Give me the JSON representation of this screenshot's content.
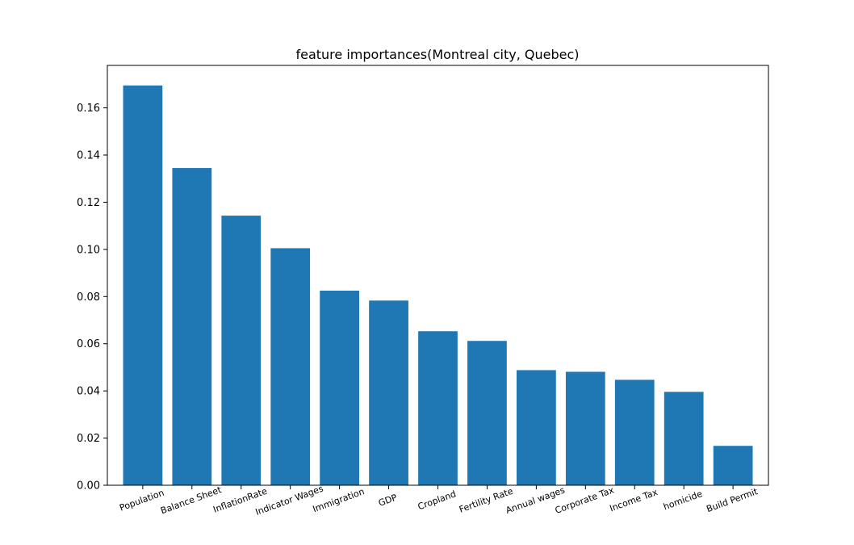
{
  "chart_data": {
    "type": "bar",
    "title": "feature importances(Montreal city, Quebec)",
    "xlabel": "",
    "ylabel": "",
    "categories": [
      "Population",
      "Balance Sheet",
      "InflationRate",
      "Indicator Wages",
      "Immigration",
      "GDP",
      "Cropland",
      "Fertility Rate",
      "Annual wages",
      "Corporate Tax",
      "Income Tax",
      "homicide",
      "Build Permit"
    ],
    "values": [
      0.1695,
      0.1345,
      0.1143,
      0.1005,
      0.0825,
      0.0783,
      0.0653,
      0.0612,
      0.0488,
      0.0481,
      0.0447,
      0.0396,
      0.0167
    ],
    "yticks": [
      "0.00",
      "0.02",
      "0.04",
      "0.06",
      "0.08",
      "0.10",
      "0.12",
      "0.14",
      "0.16"
    ],
    "ylim": [
      0,
      0.178
    ],
    "bar_color": "#1f77b4",
    "grid": false,
    "legend": "none"
  }
}
